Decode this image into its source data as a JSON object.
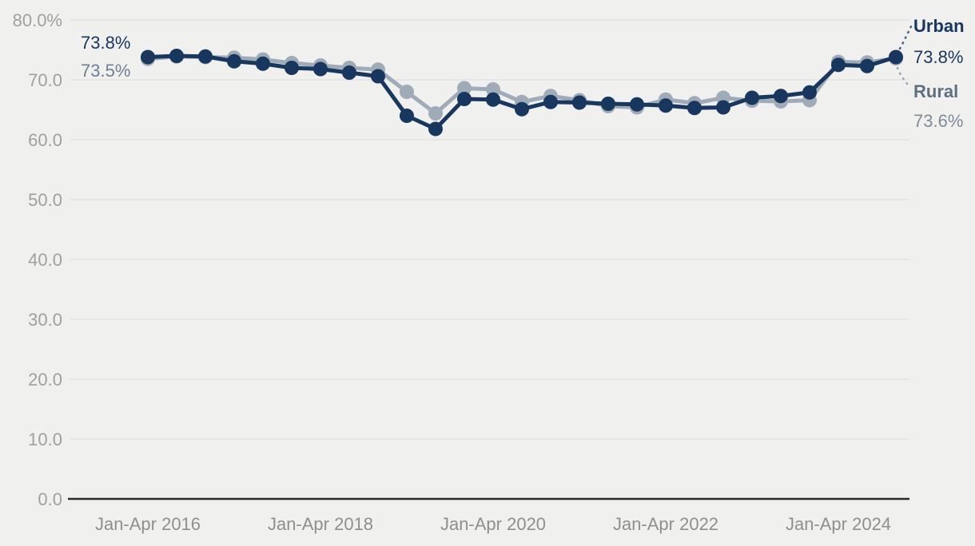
{
  "chart_data": {
    "type": "line",
    "title": "",
    "xlabel": "",
    "ylabel": "",
    "ylim": [
      0,
      80
    ],
    "grid": true,
    "x": [
      "Jan-Apr 2016",
      "May-Aug 2016",
      "Sep-Dec 2016",
      "Jan-Apr 2017",
      "May-Aug 2017",
      "Sep-Dec 2017",
      "Jan-Apr 2018",
      "May-Aug 2018",
      "Sep-Dec 2018",
      "Jan-Apr 2019",
      "May-Aug 2019",
      "Sep-Dec 2019",
      "Jan-Apr 2020",
      "May-Aug 2020",
      "Sep-Dec 2020",
      "Jan-Apr 2021",
      "May-Aug 2021",
      "Sep-Dec 2021",
      "Jan-Apr 2022",
      "May-Aug 2022",
      "Sep-Dec 2022",
      "Jan-Apr 2023",
      "May-Aug 2023",
      "Sep-Dec 2023",
      "Jan-Apr 2024",
      "May-Aug 2024",
      "Sep-Dec 2024"
    ],
    "x_tick_labels": [
      "Jan-Apr 2016",
      "Jan-Apr 2018",
      "Jan-Apr 2020",
      "Jan-Apr 2022",
      "Jan-Apr 2024"
    ],
    "x_tick_indices": [
      0,
      6,
      12,
      18,
      24
    ],
    "y_tick_labels": [
      "80.0%",
      "70.0",
      "60.0",
      "50.0",
      "40.0",
      "30.0",
      "20.0",
      "10.0",
      "0.0"
    ],
    "y_tick_values": [
      80,
      70,
      60,
      50,
      40,
      30,
      20,
      10,
      0
    ],
    "series": [
      {
        "name": "Rural",
        "color": "#9fabb7",
        "values": [
          73.5,
          73.9,
          73.8,
          73.7,
          73.4,
          72.8,
          72.4,
          72.0,
          71.7,
          68.0,
          64.4,
          68.6,
          68.4,
          66.3,
          67.3,
          66.6,
          65.6,
          65.4,
          66.7,
          66.1,
          67.0,
          66.5,
          66.4,
          66.6,
          73.0,
          72.9,
          73.6
        ]
      },
      {
        "name": "Urban",
        "color": "#17375e",
        "values": [
          73.8,
          74.0,
          73.9,
          73.1,
          72.7,
          72.0,
          71.8,
          71.2,
          70.6,
          64.0,
          61.8,
          66.8,
          66.7,
          65.1,
          66.3,
          66.2,
          66.0,
          65.9,
          65.7,
          65.3,
          65.4,
          67.0,
          67.3,
          67.9,
          72.5,
          72.3,
          73.8
        ]
      }
    ],
    "legend_position": "right-edge-direct-labels",
    "annotations": {
      "urban_start": "73.8%",
      "rural_start": "73.5%",
      "urban_end_label": "Urban",
      "urban_end_value": "73.8%",
      "rural_end_label": "Rural",
      "rural_end_value": "73.6%"
    },
    "colors": {
      "background": "#f0f0ee",
      "gridline": "#e2e2e0",
      "axis_line": "#2a2a2a",
      "y_tick_text": "#a0a0a0",
      "x_tick_text": "#8f8f8f",
      "urban": "#17375e",
      "rural": "#9fabb7",
      "rural_label_text": "#5d7080",
      "rural_value_text": "#7e8c9a",
      "rural_start_text": "#6f8094"
    }
  }
}
